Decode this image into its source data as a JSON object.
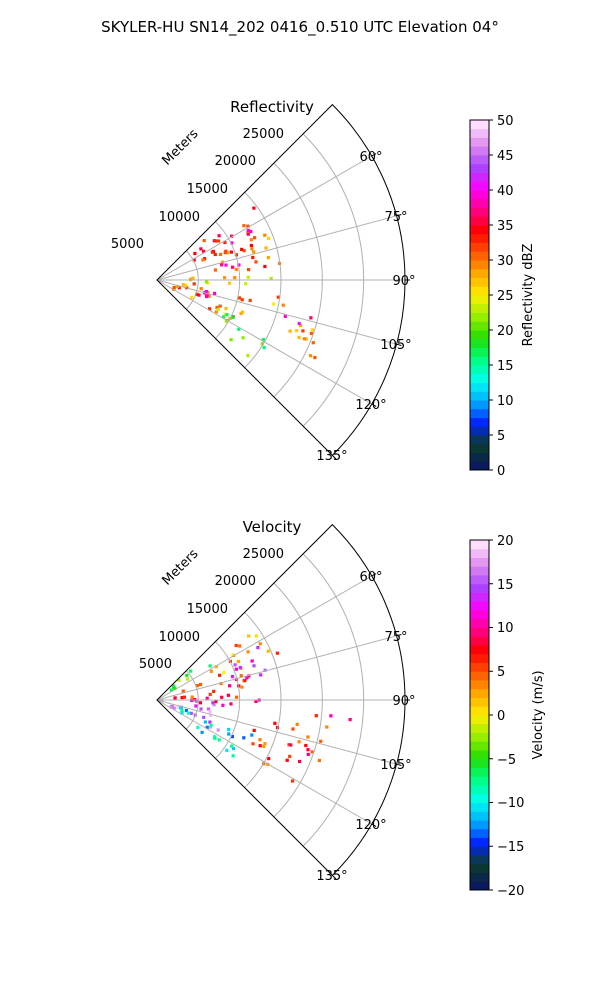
{
  "figure": {
    "suptitle": "SKYLER-HU  SN14_202  0416_0.510 UTC Elevation 04°"
  },
  "chart_data": [
    {
      "type": "heatmap",
      "projection": "polar-sector",
      "title": "Reflectivity",
      "range_axis_label": "Meters",
      "range_ticks": [
        "5000",
        "10000",
        "15000",
        "20000",
        "25000"
      ],
      "range_tick_values": [
        5000,
        10000,
        15000,
        20000,
        25000
      ],
      "range_max": 30000,
      "azimuth_limits_deg": [
        45,
        135
      ],
      "azimuth_ticks": [
        "60°",
        "75°",
        "90°",
        "105°",
        "120°",
        "135°"
      ],
      "azimuth_tick_values": [
        60,
        75,
        90,
        105,
        120,
        135
      ],
      "grid": true,
      "colorbar": {
        "label": "Reflectivity dBZ",
        "min": 0,
        "max": 50,
        "ticks": [
          "0",
          "5",
          "10",
          "15",
          "20",
          "25",
          "30",
          "35",
          "40",
          "45",
          "50"
        ],
        "tick_values": [
          0,
          5,
          10,
          15,
          20,
          25,
          30,
          35,
          40,
          45,
          50
        ],
        "stops": [
          "#0a1a5c",
          "#0a3d2a",
          "#0022ff",
          "#00aaff",
          "#00ffee",
          "#00ff80",
          "#22dd00",
          "#99ee00",
          "#ffee00",
          "#ffaa00",
          "#ff5500",
          "#ff0000",
          "#ff0088",
          "#ff00ff",
          "#aa44ff",
          "#dd88ee",
          "#ffddff"
        ]
      },
      "echo_regions": [
        {
          "az": [
            50,
            70
          ],
          "range": [
            4000,
            16000
          ],
          "value": 33
        },
        {
          "az": [
            57,
            64
          ],
          "range": [
            9000,
            14500
          ],
          "value": 41
        },
        {
          "az": [
            68,
            86
          ],
          "range": [
            6000,
            15000
          ],
          "value": 30
        },
        {
          "az": [
            74,
            82
          ],
          "range": [
            8000,
            12000
          ],
          "value": 37
        },
        {
          "az": [
            86,
            95
          ],
          "range": [
            3000,
            14000
          ],
          "value": 25
        },
        {
          "az": [
            95,
            120
          ],
          "range": [
            2000,
            12000
          ],
          "value": 30
        },
        {
          "az": [
            102,
            112
          ],
          "range": [
            3500,
            8000
          ],
          "value": 40
        },
        {
          "az": [
            98,
            112
          ],
          "range": [
            14000,
            22000
          ],
          "value": 28
        },
        {
          "az": [
            103,
            109
          ],
          "range": [
            16000,
            20000
          ],
          "value": 38
        },
        {
          "az": [
            115,
            130
          ],
          "range": [
            8000,
            16000
          ],
          "value": 20
        },
        {
          "az": [
            112,
            118
          ],
          "range": [
            18000,
            22000
          ],
          "value": 30
        }
      ]
    },
    {
      "type": "heatmap",
      "projection": "polar-sector",
      "title": "Velocity",
      "range_axis_label": "Meters",
      "range_ticks": [
        "5000",
        "10000",
        "15000",
        "20000",
        "25000"
      ],
      "range_tick_values": [
        5000,
        10000,
        15000,
        20000,
        25000
      ],
      "range_max": 30000,
      "azimuth_limits_deg": [
        45,
        135
      ],
      "azimuth_ticks": [
        "60°",
        "75°",
        "90°",
        "105°",
        "120°",
        "135°"
      ],
      "azimuth_tick_values": [
        60,
        75,
        90,
        105,
        120,
        135
      ],
      "grid": true,
      "colorbar": {
        "label": "Velocity (m/s)",
        "min": -20,
        "max": 20,
        "ticks": [
          "−20",
          "−15",
          "−10",
          "−5",
          "0",
          "5",
          "10",
          "15",
          "20"
        ],
        "tick_values": [
          -20,
          -15,
          -10,
          -5,
          0,
          5,
          10,
          15,
          20
        ],
        "stops": [
          "#0a1a5c",
          "#0a3d2a",
          "#0022ff",
          "#00aaff",
          "#00ffee",
          "#00ff80",
          "#22dd00",
          "#99ee00",
          "#ffee00",
          "#ffaa00",
          "#ff5500",
          "#ff0000",
          "#ff0088",
          "#ff00ff",
          "#aa44ff",
          "#dd88ee",
          "#ffddff"
        ]
      },
      "echo_regions": [
        {
          "az": [
            47,
            58
          ],
          "range": [
            2000,
            9000
          ],
          "value": -5
        },
        {
          "az": [
            55,
            70
          ],
          "range": [
            6000,
            16000
          ],
          "value": 3
        },
        {
          "az": [
            62,
            80
          ],
          "range": [
            8000,
            14000
          ],
          "value": 14
        },
        {
          "az": [
            70,
            88
          ],
          "range": [
            2000,
            12000
          ],
          "value": 6
        },
        {
          "az": [
            88,
            96
          ],
          "range": [
            3000,
            13000
          ],
          "value": 10
        },
        {
          "az": [
            90,
            100
          ],
          "range": [
            500,
            7000
          ],
          "value": 14
        },
        {
          "az": [
            100,
            118
          ],
          "range": [
            1500,
            9000
          ],
          "value": 16
        },
        {
          "az": [
            108,
            128
          ],
          "range": [
            3000,
            13000
          ],
          "value": -11
        },
        {
          "az": [
            98,
            116
          ],
          "range": [
            12000,
            22000
          ],
          "value": 7
        },
        {
          "az": [
            112,
            124
          ],
          "range": [
            14000,
            20000
          ],
          "value": 6
        },
        {
          "az": [
            94,
            100
          ],
          "range": [
            19000,
            24000
          ],
          "value": 10
        }
      ]
    }
  ]
}
